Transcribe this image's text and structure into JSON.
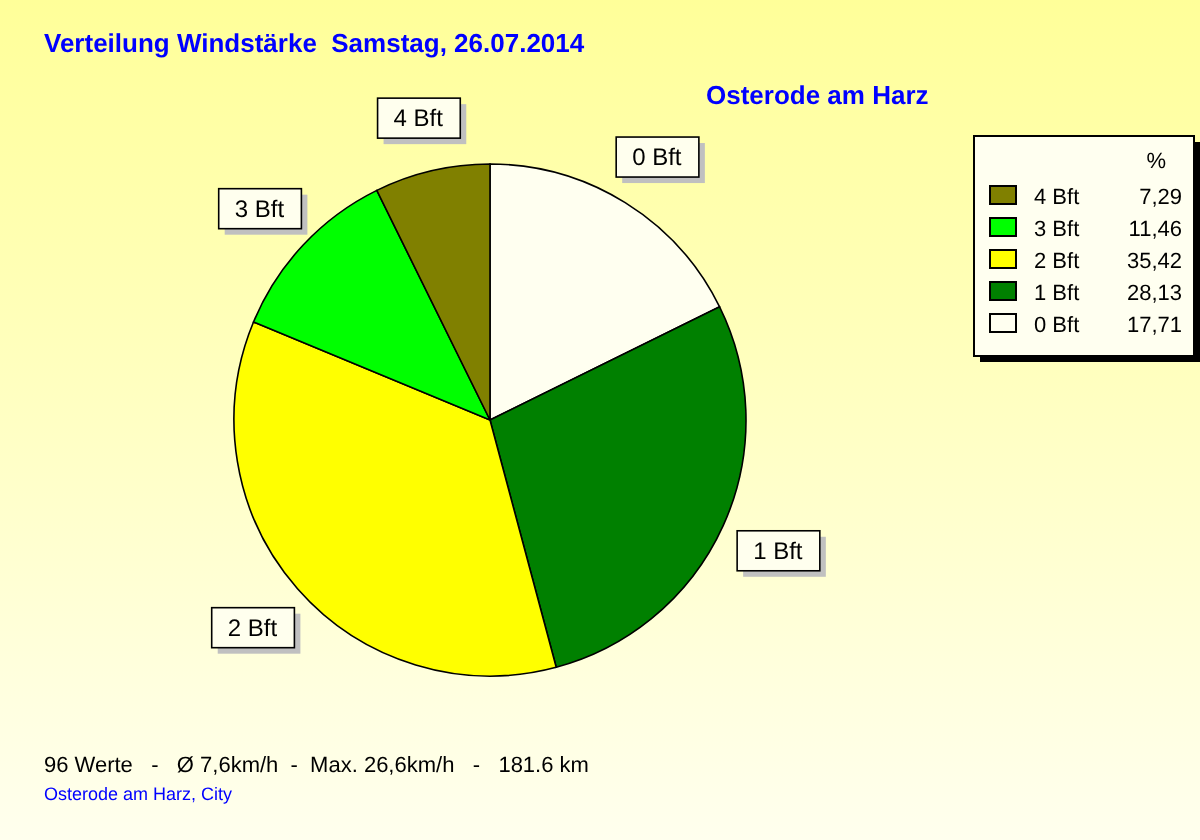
{
  "chart_data": {
    "type": "pie",
    "title": "Verteilung Windstärke  Samstag, 26.07.2014",
    "subtitle": "Osterode am Harz",
    "legend_title": "%",
    "categories": [
      "0 Bft",
      "1 Bft",
      "2 Bft",
      "3 Bft",
      "4 Bft"
    ],
    "values": [
      17.71,
      28.13,
      35.42,
      11.46,
      7.29
    ],
    "value_labels": [
      "17,71",
      "28,13",
      "35,42",
      "11,46",
      "7,29"
    ],
    "colors": [
      "#fffff0",
      "#008000",
      "#ffff00",
      "#00ff00",
      "#808000"
    ],
    "legend": "top right",
    "annotations": [
      "96 Werte   -   Ø 7,6km/h  -  Max. 26,6km/h   -   181.6 km",
      "Osterode am Harz, City"
    ]
  }
}
